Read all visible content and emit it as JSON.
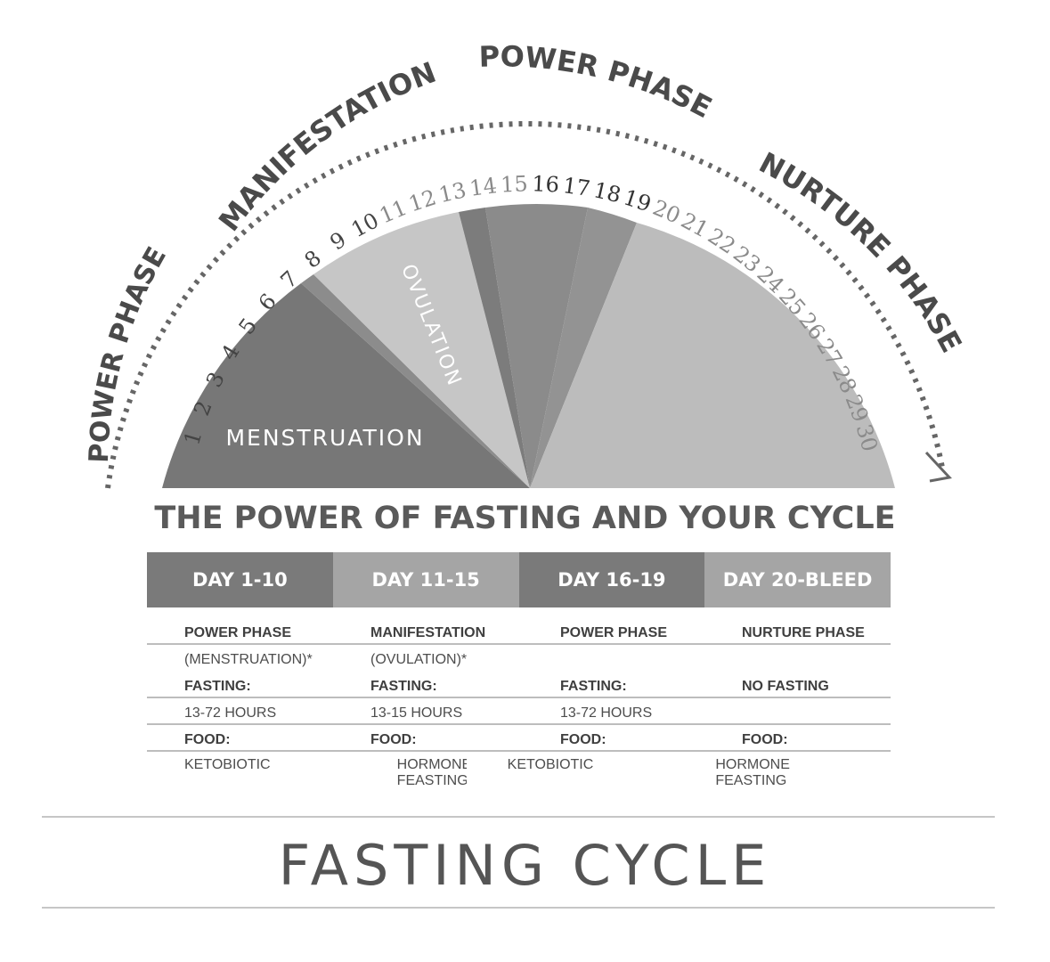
{
  "diagram": {
    "phase_labels": {
      "power_left": "POWER PHASE",
      "manifestation": "MANIFESTATION",
      "power_top": "POWER PHASE",
      "nurture": "NURTURE PHASE"
    },
    "days": [
      "1",
      "2",
      "3",
      "4",
      "5",
      "6",
      "7",
      "8",
      "9",
      "10",
      "11",
      "12",
      "13",
      "14",
      "15",
      "16",
      "17",
      "18",
      "19",
      "20",
      "21",
      "22",
      "23",
      "24",
      "25",
      "26",
      "27",
      "28",
      "29",
      "30"
    ],
    "segments": {
      "menstruation": "MENSTRUATION",
      "ovulation": "OVULATION"
    },
    "colors": {
      "menstruation": "#7a7a7a",
      "ovulation": "#c4c4c4",
      "power": "#8a8a8a",
      "nurture": "#bdbdbd",
      "text": "#4a4a4a"
    }
  },
  "headline": "THE POWER OF FASTING AND YOUR CYCLE",
  "table": {
    "headers": [
      "DAY 1-10",
      "DAY 11-15",
      "DAY 16-19",
      "DAY 20-BLEED"
    ],
    "rows": [
      {
        "bold": true,
        "cells": [
          "POWER PHASE",
          "MANIFESTATION",
          "POWER PHASE",
          "NURTURE PHASE"
        ]
      },
      {
        "bold": false,
        "cells": [
          "(MENSTRUATION)*",
          "(OVULATION)*",
          "",
          ""
        ]
      },
      {
        "bold": true,
        "cells": [
          "FASTING:",
          "FASTING:",
          "FASTING:",
          "NO FASTING"
        ]
      },
      {
        "bold": false,
        "cells": [
          "13-72 HOURS",
          "13-15 HOURS",
          "13-72 HOURS",
          ""
        ]
      },
      {
        "bold": true,
        "cells": [
          "FOOD:",
          "FOOD:",
          "FOOD:",
          "FOOD:"
        ]
      },
      {
        "bold": false,
        "cells": [
          "KETOBIOTIC",
          "HORMONE FEASTING",
          "KETOBIOTIC",
          "HORMONE FEASTING"
        ]
      }
    ]
  },
  "title": "FASTING CYCLE"
}
